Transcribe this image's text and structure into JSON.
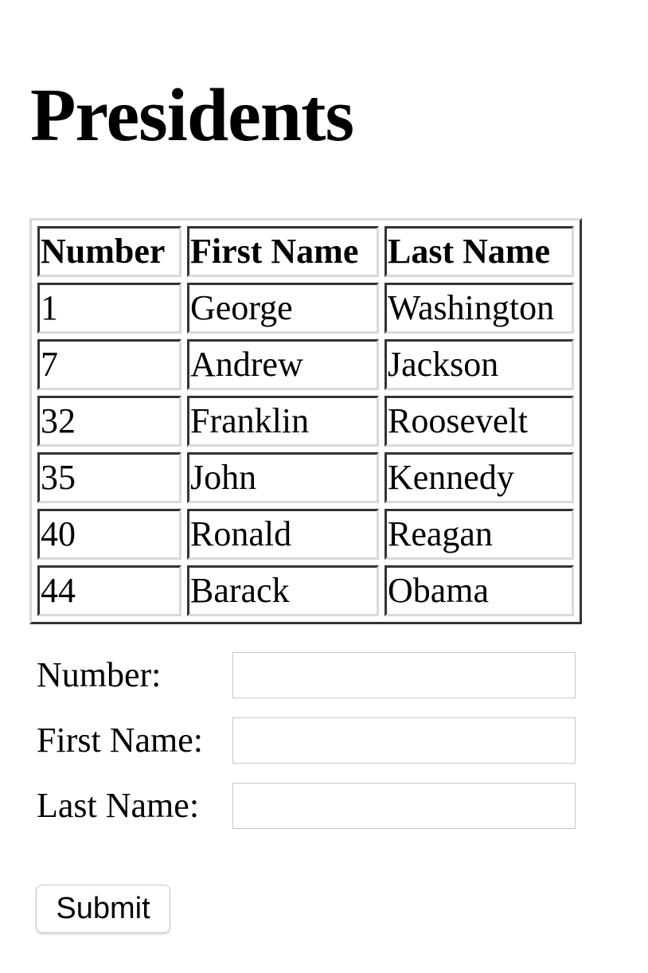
{
  "page": {
    "title": "Presidents"
  },
  "table": {
    "headers": {
      "number": "Number",
      "first_name": "First Name",
      "last_name": "Last Name"
    },
    "rows": [
      {
        "number": "1",
        "first_name": "George",
        "last_name": "Washington"
      },
      {
        "number": "7",
        "first_name": "Andrew",
        "last_name": "Jackson"
      },
      {
        "number": "32",
        "first_name": "Franklin",
        "last_name": "Roosevelt"
      },
      {
        "number": "35",
        "first_name": "John",
        "last_name": "Kennedy"
      },
      {
        "number": "40",
        "first_name": "Ronald",
        "last_name": "Reagan"
      },
      {
        "number": "44",
        "first_name": "Barack",
        "last_name": "Obama"
      }
    ]
  },
  "form": {
    "number_label": "Number:",
    "number_value": "",
    "first_name_label": "First Name:",
    "first_name_value": "",
    "last_name_label": "Last Name:",
    "last_name_value": "",
    "submit_label": "Submit"
  }
}
